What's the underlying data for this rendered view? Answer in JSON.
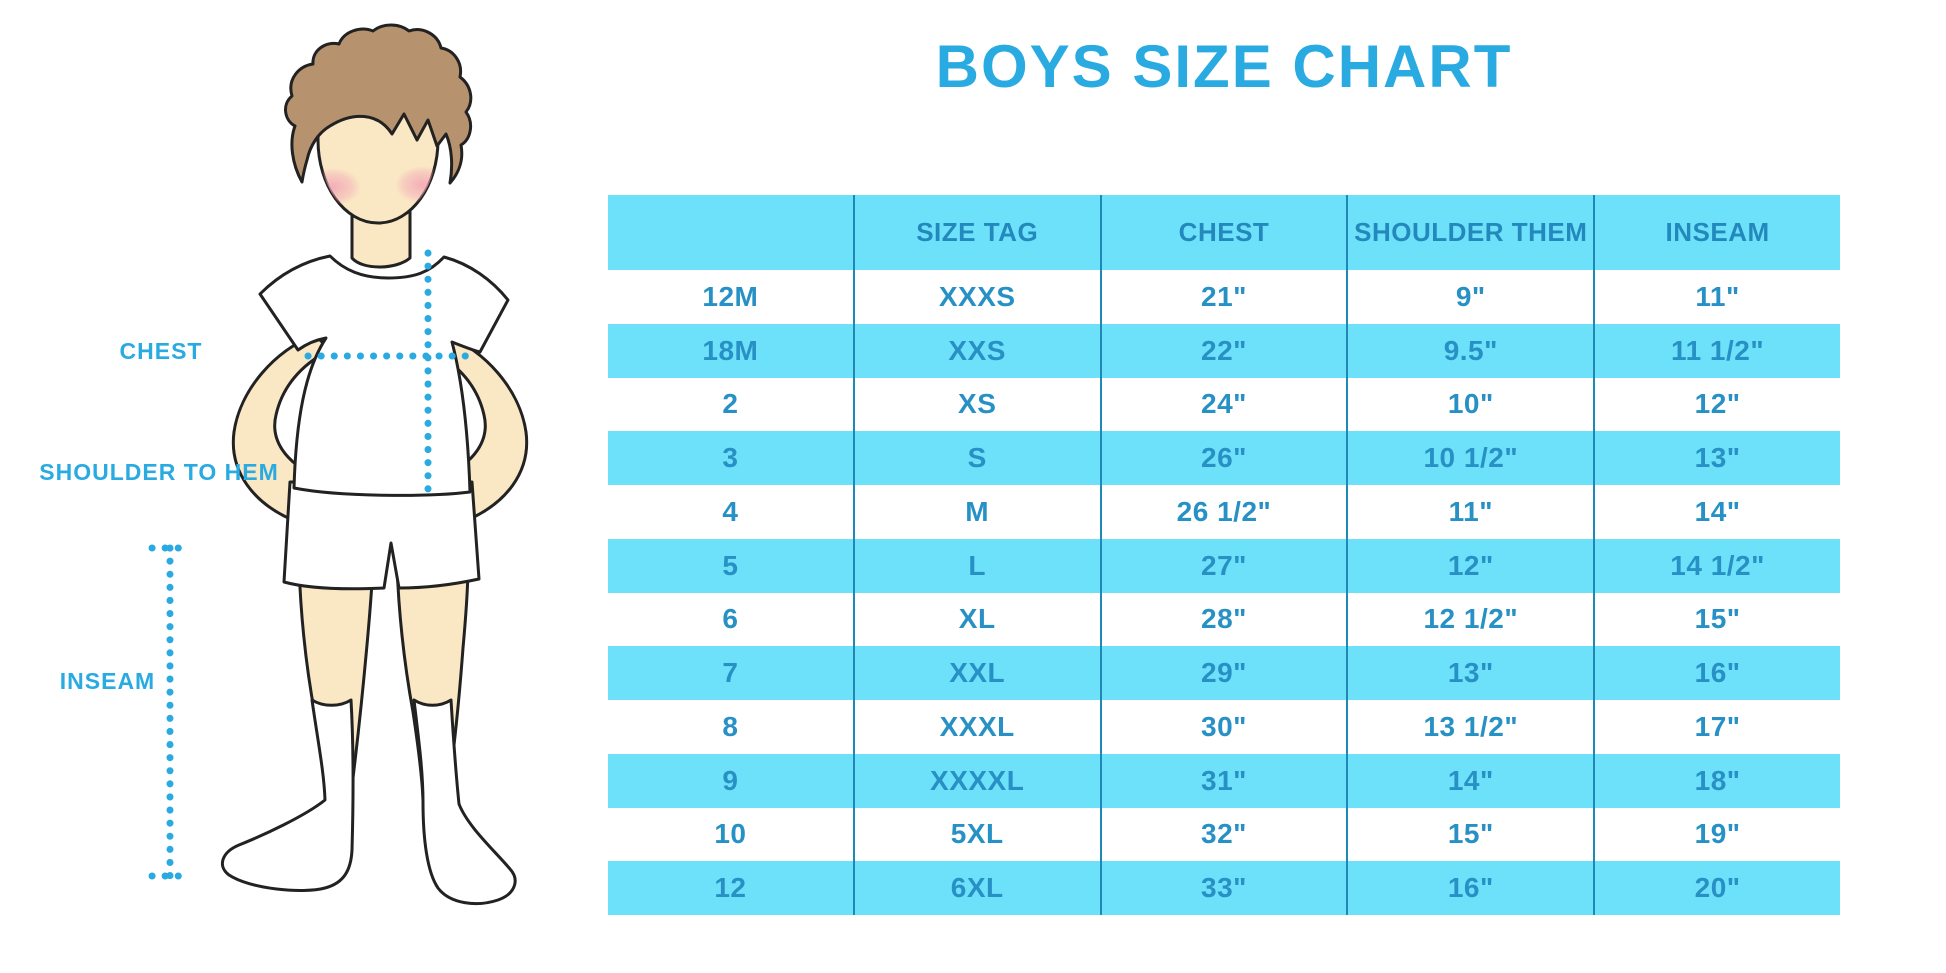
{
  "page": {
    "title": "BOYS SIZE CHART"
  },
  "figure": {
    "chest_label": "CHEST",
    "shoulder_to_hem_label": "SHOULDER TO HEM",
    "inseam_label": "INSEAM"
  },
  "chart_data": {
    "type": "table",
    "title": "BOYS SIZE CHART",
    "columns": [
      "",
      "SIZE TAG",
      "CHEST",
      "SHOULDER THEM",
      "INSEAM"
    ],
    "rows": [
      [
        "12M",
        "XXXS",
        "21\"",
        "9\"",
        "11\""
      ],
      [
        "18M",
        "XXS",
        "22\"",
        "9.5\"",
        "11 1/2\""
      ],
      [
        "2",
        "XS",
        "24\"",
        "10\"",
        "12\""
      ],
      [
        "3",
        "S",
        "26\"",
        "10 1/2\"",
        "13\""
      ],
      [
        "4",
        "M",
        "26 1/2\"",
        "11\"",
        "14\""
      ],
      [
        "5",
        "L",
        "27\"",
        "12\"",
        "14 1/2\""
      ],
      [
        "6",
        "XL",
        "28\"",
        "12 1/2\"",
        "15\""
      ],
      [
        "7",
        "XXL",
        "29\"",
        "13\"",
        "16\""
      ],
      [
        "8",
        "XXXL",
        "30\"",
        "13 1/2\"",
        "17\""
      ],
      [
        "9",
        "XXXXL",
        "31\"",
        "14\"",
        "18\""
      ],
      [
        "10",
        "5XL",
        "32\"",
        "15\"",
        "19\""
      ],
      [
        "12",
        "6XL",
        "33\"",
        "16\"",
        "20\""
      ]
    ],
    "stripe_pattern": "header cyan, then data rows alternating white / cyan starting with white",
    "grid": "vertical column dividers only, no outer border",
    "legend_position": "none"
  },
  "colors": {
    "accent_blue": "#29ABE2",
    "stripe_cyan": "#6EE1FA",
    "table_text_blue": "#2791C5",
    "divider_blue": "#1E88B6",
    "dotted_line_blue": "#2BA9E1",
    "skin": "#FAE7C4",
    "hair_brown": "#B6926F",
    "blush_pink": "#F29FB4",
    "outline": "#222222",
    "background": "#FFFFFF"
  }
}
